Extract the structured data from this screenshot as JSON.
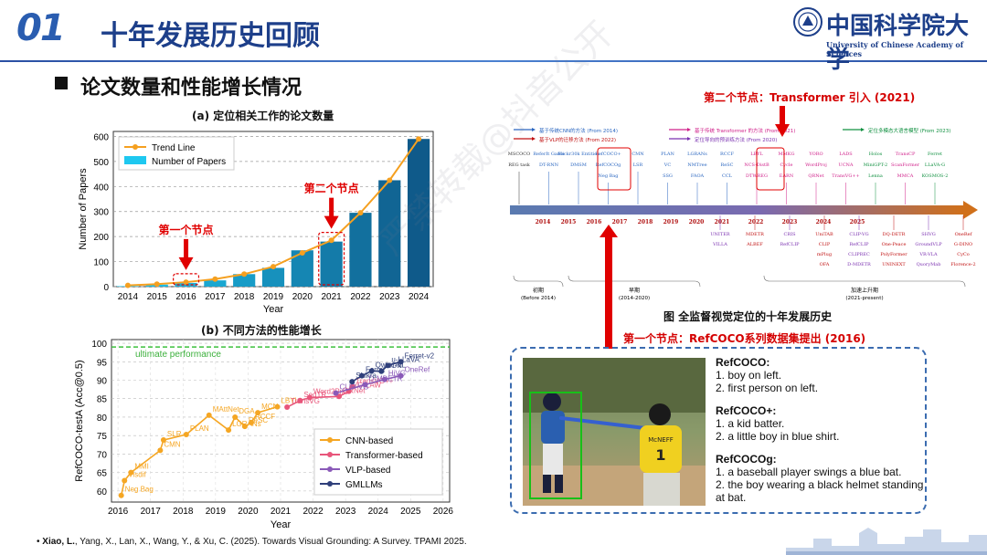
{
  "header": {
    "slide_number": "01",
    "title": "十年发展历史回顾",
    "logo_cn": "中国科学院大学",
    "logo_en": "University of Chinese Academy of Sciences"
  },
  "section": {
    "title": "论文数量和性能增长情况"
  },
  "watermark": "严禁转载@抖音公开",
  "chart_a": {
    "title": "(a) 定位相关工作的论文数量",
    "annotation_node1": "第一个节点",
    "annotation_node2": "第二个节点"
  },
  "chart_b": {
    "title": "(b) 不同方法的性能增长"
  },
  "right": {
    "node2_title": "第二个节点：Transformer 引入 (2021)",
    "timeline_caption": "图  全监督视觉定位的十年发展历史",
    "node1_title": "第一个节点：RefCOCO系列数据集提出 (2016)"
  },
  "timeline": {
    "legend": [
      {
        "text": "基于传统CNN的方法 (From 2014)",
        "color": "#2a66c0"
      },
      {
        "text": "基于VLP的迁移方法 (From 2022)",
        "color": "#c01010"
      },
      {
        "text": "基于传统 Transformer 的方法 (From 2021)",
        "color": "#d0208a"
      },
      {
        "text": "定位导向的预训练方法 (From 2020)",
        "color": "#7a30b0"
      },
      {
        "text": "定位多模态大语言模型 (From 2023)",
        "color": "#109040"
      }
    ],
    "years": [
      "2014",
      "2015",
      "2016",
      "2017",
      "2018",
      "2019",
      "2020",
      "2021",
      "2022",
      "2023",
      "2024",
      "2025"
    ],
    "methods_top": [
      [
        "MSCOCO",
        "REG task"
      ],
      [
        "ReferIt Game",
        "DT-RNN"
      ],
      [
        "Flickr30k Entities",
        "DMSM"
      ],
      [
        "RefCOCO+",
        "RefCOCOg",
        "Neg Bag"
      ],
      [
        "CMN",
        "LSR"
      ],
      [
        "PLAN",
        "VC",
        "SSG"
      ],
      [
        "LGRANs",
        "NMTree",
        "FAOA"
      ],
      [
        "RCCF",
        "ReSC",
        "CCL"
      ],
      [
        "LBYL",
        "NCS-DistB",
        "DTWREG"
      ],
      [
        "MMKG",
        "Cycle",
        "EARN"
      ],
      [
        "YORO",
        "WordProj",
        "QRNet"
      ],
      [
        "LADS",
        "UCNA",
        "TransVG++"
      ],
      [
        "Holos",
        "MiniGPT-2",
        "Lenna"
      ],
      [
        "TransCP",
        "ScanFormer",
        "MMCA"
      ],
      [
        "Ferret",
        "LLaVA-G",
        "KOSMOS-2"
      ]
    ],
    "methods_bottom": [
      [
        "UNITER",
        "VILLA"
      ],
      [
        "MDETR",
        "ALBEF"
      ],
      [
        "CRIS",
        "RefCLIP"
      ],
      [
        "UniTAB",
        "CLIP",
        "mPlug",
        "OFA"
      ],
      [
        "CLIP-VG",
        "RefCLIP",
        "CLIPREC",
        "D-MDETR"
      ],
      [
        "DQ-DETR",
        "One-Peace",
        "PolyFormer",
        "UNINEXT"
      ],
      [
        "SHVG",
        "GroundVLP",
        "VR-VLA",
        "QuoryMab"
      ],
      [
        "OneRef",
        "G-DINO",
        "CyCo",
        "Florence-2"
      ]
    ],
    "phases": [
      {
        "name": "初期",
        "range": "(Before 2014)"
      },
      {
        "name": "早期",
        "range": "(2014-2020)"
      },
      {
        "name": "加速上升期",
        "range": "(2021-present)"
      }
    ]
  },
  "examples": [
    {
      "name": "RefCOCO:",
      "lines": [
        "1. boy on left.",
        "2. first person on left."
      ]
    },
    {
      "name": "RefCOCO+:",
      "lines": [
        "1. a kid batter.",
        "2. a little boy in blue shirt."
      ]
    },
    {
      "name": "RefCOCOg:",
      "lines": [
        "1. a baseball player swings a blue bat.",
        "2. the boy wearing a black helmet standing at bat."
      ]
    }
  ],
  "photo": {
    "jersey_text": "McNEFF",
    "jersey_number": "1"
  },
  "citation": {
    "bullet": "•",
    "authors_bold": "Xiao, L.",
    "rest": ", Yang, X., Lan, X., Wang, Y., & Xu, C. (2025). Towards Visual Grounding: A Survey. TPAMI 2025."
  },
  "chart_data": [
    {
      "type": "bar",
      "title": "(a) 定位相关工作的论文数量",
      "xlabel": "Year",
      "ylabel": "Number of Papers",
      "categories": [
        "2014",
        "2015",
        "2016",
        "2017",
        "2018",
        "2019",
        "2020",
        "2021",
        "2022",
        "2023",
        "2024"
      ],
      "series": [
        {
          "name": "Number of Papers",
          "chart": "bar",
          "values": [
            2,
            8,
            15,
            25,
            50,
            75,
            145,
            180,
            295,
            425,
            590
          ]
        },
        {
          "name": "Trend Line",
          "chart": "line",
          "values": [
            5,
            10,
            18,
            30,
            50,
            80,
            135,
            185,
            295,
            425,
            590
          ]
        }
      ],
      "yticks": [
        0,
        100,
        200,
        300,
        400,
        500,
        600
      ],
      "ylim": [
        0,
        620
      ],
      "grid": true,
      "legend": "top-left",
      "colors": {
        "bar_light": "#1ec8f0",
        "bar_dark": "#0f5a8a",
        "line": "#f5a020"
      },
      "highlights": [
        "2016",
        "2021"
      ]
    },
    {
      "type": "scatter",
      "title": "(b) 不同方法的性能增长",
      "xlabel": "Year",
      "ylabel": "RefCOCO-testA (Acc@0.5)",
      "xlim": [
        2015.8,
        2026.2
      ],
      "ylim": [
        57,
        101
      ],
      "xticks": [
        2016,
        2017,
        2018,
        2019,
        2020,
        2021,
        2022,
        2023,
        2024,
        2025,
        2026
      ],
      "yticks": [
        60,
        65,
        70,
        75,
        80,
        85,
        90,
        95,
        100
      ],
      "ultimate_performance": {
        "label": "ultimate performance",
        "value": 99
      },
      "legend": "bottom-right",
      "grid": true,
      "series": [
        {
          "name": "CNN-based",
          "color": "#f5a623",
          "points": [
            {
              "x": 2016.1,
              "y": 58.8,
              "label": "Neg Bag"
            },
            {
              "x": 2016.2,
              "y": 62.8,
              "label": "Visdif"
            },
            {
              "x": 2016.4,
              "y": 65.0,
              "label": "MMI"
            },
            {
              "x": 2017.3,
              "y": 71.0,
              "label": "CMN"
            },
            {
              "x": 2017.4,
              "y": 73.8,
              "label": "SLR"
            },
            {
              "x": 2018.1,
              "y": 75.3,
              "label": "PLAN"
            },
            {
              "x": 2018.8,
              "y": 80.5,
              "label": "MAttNet"
            },
            {
              "x": 2019.4,
              "y": 76.5,
              "label": "LGRANs"
            },
            {
              "x": 2019.6,
              "y": 80.0,
              "label": "DGA"
            },
            {
              "x": 2019.9,
              "y": 77.5,
              "label": "ReSC"
            },
            {
              "x": 2020.1,
              "y": 78.5,
              "label": "RCCF"
            },
            {
              "x": 2020.3,
              "y": 81.2,
              "label": "MCN"
            },
            {
              "x": 2020.9,
              "y": 82.8,
              "label": "LBYL"
            }
          ]
        },
        {
          "name": "Transformer-based",
          "color": "#e8557a",
          "points": [
            {
              "x": 2021.2,
              "y": 82.7,
              "label": "TransVG"
            },
            {
              "x": 2021.6,
              "y": 84.5,
              "label": "SeqTR"
            },
            {
              "x": 2021.9,
              "y": 85.3,
              "label": "Word2Pix"
            },
            {
              "x": 2022.8,
              "y": 85.6,
              "label": "QRNet"
            },
            {
              "x": 2023.1,
              "y": 87.0,
              "label": "VG-LAW"
            },
            {
              "x": 2023.2,
              "y": 88.2,
              "label": "TransVG++"
            }
          ]
        },
        {
          "name": "VLP-based",
          "color": "#8a5ab8",
          "points": [
            {
              "x": 2022.7,
              "y": 86.5,
              "label": "CLIP-VG"
            },
            {
              "x": 2023.6,
              "y": 88.8,
              "label": "D-MDETR"
            },
            {
              "x": 2024.2,
              "y": 90.2,
              "label": "HiVG"
            },
            {
              "x": 2024.7,
              "y": 91.2,
              "label": "OneRef"
            }
          ]
        },
        {
          "name": "GMLLMs",
          "color": "#2f3f7a",
          "points": [
            {
              "x": 2023.2,
              "y": 89.6,
              "label": "Shikra"
            },
            {
              "x": 2023.5,
              "y": 91.2,
              "label": "Ferret"
            },
            {
              "x": 2023.8,
              "y": 92.5,
              "label": "Qwen-VL"
            },
            {
              "x": 2024.1,
              "y": 92.4,
              "label": "LION"
            },
            {
              "x": 2024.3,
              "y": 94.0,
              "label": "u-LLaVA"
            },
            {
              "x": 2024.7,
              "y": 95.0,
              "label": "Ferret-v2"
            }
          ]
        }
      ]
    }
  ]
}
